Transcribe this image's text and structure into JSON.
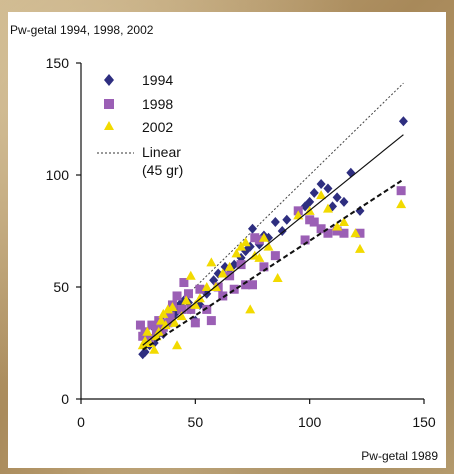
{
  "chart_data": {
    "type": "scatter",
    "title": "Pw-getal 1994, 1998, 2002",
    "xlabel": "Pw-getal 1989",
    "ylabel": "",
    "xlim": [
      0,
      150
    ],
    "ylim": [
      0,
      150
    ],
    "xticks": [
      "0",
      "50",
      "100",
      "150"
    ],
    "yticks": [
      "0",
      "50",
      "100",
      "150"
    ],
    "grid": false,
    "legend_position": "top-left",
    "series": [
      {
        "name": "1994",
        "marker": "diamond",
        "color": "#2e2e80",
        "points": [
          [
            27,
            20
          ],
          [
            28,
            21
          ],
          [
            30,
            24
          ],
          [
            29,
            27
          ],
          [
            32,
            25
          ],
          [
            34,
            30
          ],
          [
            33,
            28
          ],
          [
            36,
            29
          ],
          [
            37,
            33
          ],
          [
            38,
            34
          ],
          [
            39,
            36
          ],
          [
            40,
            37
          ],
          [
            41,
            38
          ],
          [
            42,
            40
          ],
          [
            43,
            42
          ],
          [
            45,
            44
          ],
          [
            47,
            43
          ],
          [
            48,
            40
          ],
          [
            50,
            35
          ],
          [
            52,
            42
          ],
          [
            55,
            47
          ],
          [
            58,
            53
          ],
          [
            60,
            56
          ],
          [
            63,
            59
          ],
          [
            65,
            58
          ],
          [
            67,
            60
          ],
          [
            70,
            63
          ],
          [
            72,
            66
          ],
          [
            74,
            68
          ],
          [
            75,
            76
          ],
          [
            78,
            69
          ],
          [
            80,
            73
          ],
          [
            82,
            72
          ],
          [
            85,
            79
          ],
          [
            88,
            75
          ],
          [
            90,
            80
          ],
          [
            95,
            83
          ],
          [
            98,
            86
          ],
          [
            100,
            88
          ],
          [
            102,
            92
          ],
          [
            105,
            96
          ],
          [
            108,
            94
          ],
          [
            110,
            86
          ],
          [
            112,
            90
          ],
          [
            115,
            88
          ],
          [
            118,
            101
          ],
          [
            122,
            84
          ],
          [
            141,
            124
          ]
        ]
      },
      {
        "name": "1998",
        "marker": "square",
        "color": "#9b5fb5",
        "points": [
          [
            26,
            33
          ],
          [
            27,
            28
          ],
          [
            28,
            30
          ],
          [
            30,
            27
          ],
          [
            31,
            33
          ],
          [
            33,
            31
          ],
          [
            34,
            35
          ],
          [
            35,
            30
          ],
          [
            36,
            32
          ],
          [
            38,
            34
          ],
          [
            39,
            37
          ],
          [
            40,
            42
          ],
          [
            42,
            46
          ],
          [
            44,
            40
          ],
          [
            45,
            52
          ],
          [
            47,
            47
          ],
          [
            48,
            40
          ],
          [
            50,
            34
          ],
          [
            52,
            49
          ],
          [
            55,
            40
          ],
          [
            57,
            35
          ],
          [
            60,
            50
          ],
          [
            62,
            46
          ],
          [
            65,
            55
          ],
          [
            67,
            49
          ],
          [
            70,
            60
          ],
          [
            72,
            51
          ],
          [
            75,
            51
          ],
          [
            76,
            72
          ],
          [
            78,
            71
          ],
          [
            80,
            59
          ],
          [
            85,
            64
          ],
          [
            95,
            84
          ],
          [
            98,
            71
          ],
          [
            100,
            80
          ],
          [
            102,
            79
          ],
          [
            105,
            76
          ],
          [
            108,
            74
          ],
          [
            112,
            75
          ],
          [
            115,
            74
          ],
          [
            122,
            74
          ],
          [
            140,
            93
          ]
        ]
      },
      {
        "name": "2002",
        "marker": "triangle",
        "color": "#f2da00",
        "points": [
          [
            27,
            24
          ],
          [
            28,
            26
          ],
          [
            29,
            30
          ],
          [
            30,
            25
          ],
          [
            32,
            22
          ],
          [
            33,
            28
          ],
          [
            34,
            30
          ],
          [
            35,
            35
          ],
          [
            36,
            38
          ],
          [
            37,
            33
          ],
          [
            38,
            40
          ],
          [
            40,
            41
          ],
          [
            41,
            34
          ],
          [
            42,
            24
          ],
          [
            44,
            37
          ],
          [
            46,
            44
          ],
          [
            48,
            55
          ],
          [
            50,
            42
          ],
          [
            52,
            45
          ],
          [
            55,
            50
          ],
          [
            57,
            61
          ],
          [
            59,
            50
          ],
          [
            62,
            56
          ],
          [
            65,
            59
          ],
          [
            68,
            65
          ],
          [
            70,
            68
          ],
          [
            72,
            70
          ],
          [
            74,
            40
          ],
          [
            76,
            64
          ],
          [
            78,
            63
          ],
          [
            80,
            72
          ],
          [
            82,
            68
          ],
          [
            86,
            54
          ],
          [
            95,
            82
          ],
          [
            100,
            84
          ],
          [
            105,
            91
          ],
          [
            108,
            85
          ],
          [
            112,
            77
          ],
          [
            115,
            79
          ],
          [
            120,
            74
          ],
          [
            122,
            67
          ],
          [
            140,
            87
          ]
        ]
      },
      {
        "name": "Linear (45 gr)",
        "line_style": "dotted",
        "points": [
          [
            27,
            27
          ],
          [
            141,
            141
          ]
        ]
      }
    ],
    "trendlines": [
      {
        "style": "solid",
        "points": [
          [
            27,
            24
          ],
          [
            141,
            118
          ]
        ]
      },
      {
        "style": "dashed",
        "points": [
          [
            27,
            22
          ],
          [
            141,
            98
          ]
        ]
      }
    ]
  }
}
